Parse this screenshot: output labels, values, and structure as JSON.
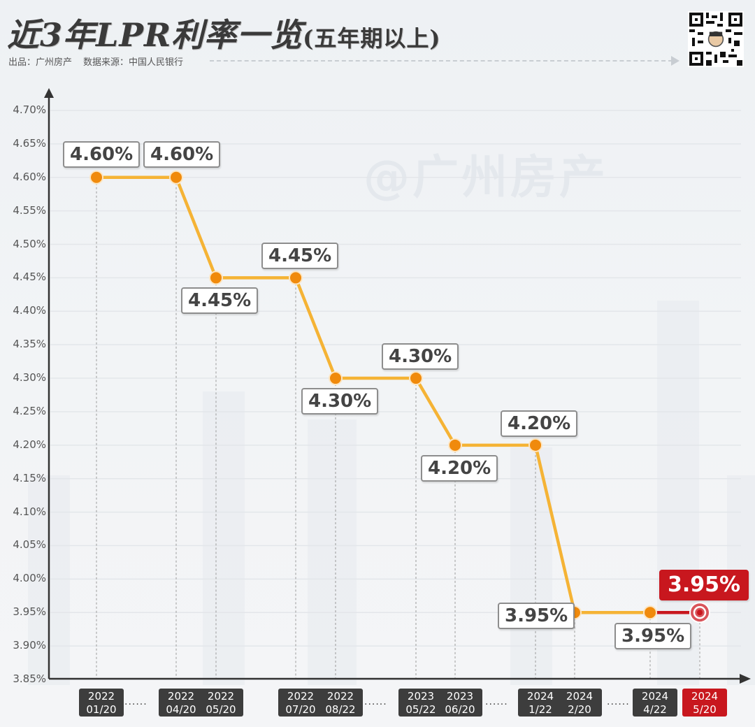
{
  "header": {
    "title_main": "近3年LPR利率一览",
    "title_sub": "(五年期以上)",
    "producer": "出品：广州房产",
    "data_source": "数据来源：中国人民银行",
    "watermark": "@广州房产"
  },
  "colors": {
    "line": "#f5b335",
    "point": "#f08a0c",
    "highlight": "#c8171e",
    "axis": "#333333",
    "date_box": "#3d3d3d"
  },
  "chart_data": {
    "type": "line",
    "title": "近3年LPR利率一览(五年期以上)",
    "xlabel": "",
    "ylabel": "",
    "ylim": [
      3.85,
      4.7
    ],
    "y_ticks": [
      "4.70%",
      "4.65%",
      "4.60%",
      "4.55%",
      "4.50%",
      "4.45%",
      "4.40%",
      "4.35%",
      "4.30%",
      "4.25%",
      "4.20%",
      "4.15%",
      "4.10%",
      "4.05%",
      "4.00%",
      "3.95%",
      "3.90%",
      "3.85%"
    ],
    "grid": true,
    "categories": [
      "2022 01/20",
      "2022 04/20",
      "2022 05/20",
      "2022 07/20",
      "2022 08/22",
      "2023 05/22",
      "2023 06/20",
      "2024 1/22",
      "2024 2/20",
      "2024 4/22",
      "2024 5/20"
    ],
    "values": [
      4.6,
      4.6,
      4.45,
      4.45,
      4.3,
      4.3,
      4.2,
      4.2,
      3.95,
      3.95,
      3.95
    ],
    "value_labels": [
      "4.60%",
      "4.60%",
      "4.45%",
      "4.45%",
      "4.30%",
      "4.30%",
      "4.20%",
      "4.20%",
      "3.95%",
      "3.95%",
      "3.95%"
    ],
    "highlight_index": 10
  },
  "dates": [
    {
      "year": "2022",
      "md": "01/20"
    },
    {
      "year": "2022",
      "md": "04/20"
    },
    {
      "year": "2022",
      "md": "05/20"
    },
    {
      "year": "2022",
      "md": "07/20"
    },
    {
      "year": "2022",
      "md": "08/22"
    },
    {
      "year": "2023",
      "md": "05/22"
    },
    {
      "year": "2023",
      "md": "06/20"
    },
    {
      "year": "2024",
      "md": "1/22"
    },
    {
      "year": "2024",
      "md": "2/20"
    },
    {
      "year": "2024",
      "md": "4/22"
    },
    {
      "year": "2024",
      "md": "5/20"
    }
  ],
  "gap_marker": "······"
}
